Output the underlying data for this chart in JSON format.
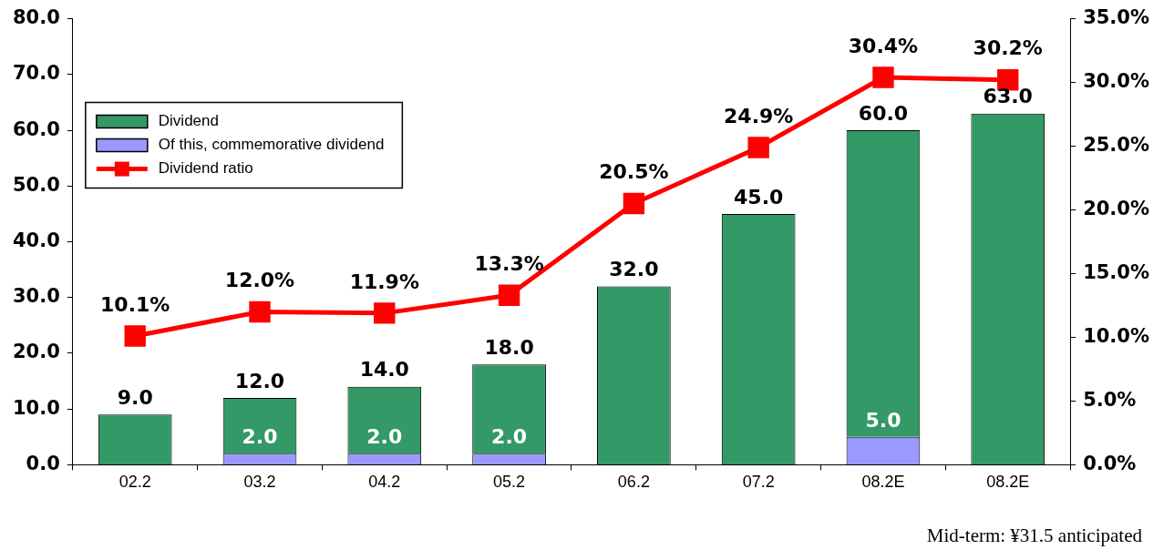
{
  "chart_data": {
    "type": "bar",
    "stacked": true,
    "categories": [
      "02.2",
      "03.2",
      "04.2",
      "05.2",
      "06.2",
      "07.2",
      "08.2E",
      "08.2E"
    ],
    "series": [
      {
        "name": "Of this, commemorative dividend",
        "color": "#9999ff",
        "values": [
          null,
          2,
          2,
          2,
          null,
          null,
          5,
          null
        ],
        "value_labels": [
          null,
          "2.0",
          "2.0",
          "2.0",
          null,
          null,
          "5.0",
          null
        ]
      },
      {
        "name": "Dividend",
        "color": "#339966",
        "values": [
          9,
          10,
          12,
          16,
          32,
          45,
          55,
          63
        ]
      },
      {
        "name": "Dividend ratio",
        "type": "line",
        "axis": "y2",
        "color": "#ff0000",
        "marker": "square",
        "values": [
          10.1,
          12.0,
          11.9,
          13.3,
          20.5,
          24.9,
          30.4,
          30.2
        ],
        "value_labels": [
          "10.1%",
          "12.0%",
          "11.9%",
          "13.3%",
          "20.5%",
          "24.9%",
          "30.4%",
          "30.2%"
        ]
      }
    ],
    "totals": [
      "9.0",
      "12.0",
      "14.0",
      "18.0",
      "32.0",
      "45.0",
      "60.0",
      "63.0"
    ],
    "ylim": [
      0,
      80
    ],
    "yticks": [
      {
        "value": 0,
        "label": "0.0"
      },
      {
        "value": 10,
        "label": "10.0"
      },
      {
        "value": 20,
        "label": "20.0"
      },
      {
        "value": 30,
        "label": "30.0"
      },
      {
        "value": 40,
        "label": "40.0"
      },
      {
        "value": 50,
        "label": "50.0"
      },
      {
        "value": 60,
        "label": "60.0"
      },
      {
        "value": 70,
        "label": "70.0"
      },
      {
        "value": 80,
        "label": "80.0"
      }
    ],
    "y2lim": [
      0,
      35
    ],
    "y2ticks": [
      {
        "value": 0,
        "label": "0.0%"
      },
      {
        "value": 5,
        "label": "5.0%"
      },
      {
        "value": 10,
        "label": "10.0%"
      },
      {
        "value": 15,
        "label": "15.0%"
      },
      {
        "value": 20,
        "label": "20.0%"
      },
      {
        "value": 25,
        "label": "25.0%"
      },
      {
        "value": 30,
        "label": "30.0%"
      },
      {
        "value": 35,
        "label": "35.0%"
      }
    ],
    "legend": "top left",
    "annotations": [
      "Mid-term: ¥31.5 anticipated"
    ]
  }
}
